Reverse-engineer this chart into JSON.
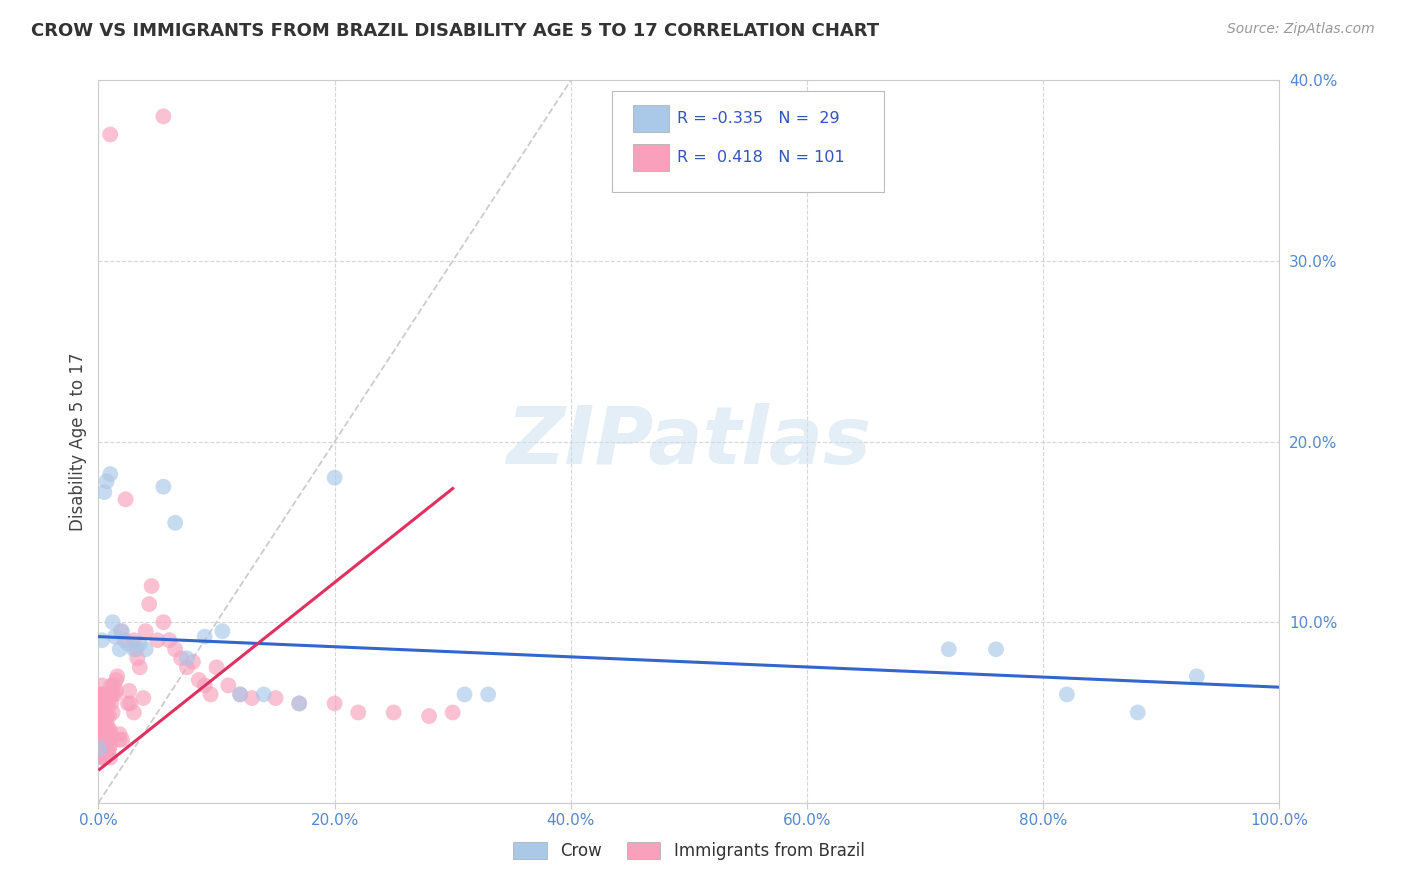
{
  "title": "CROW VS IMMIGRANTS FROM BRAZIL DISABILITY AGE 5 TO 17 CORRELATION CHART",
  "source": "Source: ZipAtlas.com",
  "ylabel": "Disability Age 5 to 17",
  "xlim": [
    0,
    1.0
  ],
  "ylim": [
    0,
    0.4
  ],
  "xtick_vals": [
    0.0,
    0.2,
    0.4,
    0.6,
    0.8,
    1.0
  ],
  "xtick_labels": [
    "0.0%",
    "20.0%",
    "40.0%",
    "60.0%",
    "80.0%",
    "100.0%"
  ],
  "ytick_vals": [
    0.0,
    0.1,
    0.2,
    0.3,
    0.4
  ],
  "ytick_labels": [
    "",
    "10.0%",
    "20.0%",
    "30.0%",
    "40.0%"
  ],
  "crow_color": "#aac8e8",
  "brazil_color": "#f8a0bc",
  "crow_line_color": "#3366cc",
  "brazil_line_color": "#e03060",
  "diagonal_color": "#cccccc",
  "R_crow": -0.335,
  "N_crow": 29,
  "R_brazil": 0.418,
  "N_brazil": 101,
  "watermark": "ZIPatlas",
  "crow_intercept": 0.092,
  "crow_slope": -0.028,
  "brazil_intercept": 0.018,
  "brazil_slope": 0.52,
  "brazil_line_xmin": 0.001,
  "brazil_line_xmax": 0.3,
  "crow_x": [
    0.001,
    0.003,
    0.005,
    0.007,
    0.01,
    0.012,
    0.014,
    0.018,
    0.02,
    0.025,
    0.03,
    0.035,
    0.04,
    0.055,
    0.065,
    0.075,
    0.09,
    0.105,
    0.12,
    0.14,
    0.17,
    0.2,
    0.31,
    0.33,
    0.72,
    0.76,
    0.82,
    0.88,
    0.93
  ],
  "crow_y": [
    0.03,
    0.09,
    0.172,
    0.178,
    0.182,
    0.1,
    0.092,
    0.085,
    0.095,
    0.088,
    0.085,
    0.088,
    0.085,
    0.175,
    0.155,
    0.08,
    0.092,
    0.095,
    0.06,
    0.06,
    0.055,
    0.18,
    0.06,
    0.06,
    0.085,
    0.085,
    0.06,
    0.05,
    0.07
  ],
  "brazil_x": [
    0.001,
    0.001,
    0.001,
    0.001,
    0.002,
    0.002,
    0.002,
    0.002,
    0.002,
    0.003,
    0.003,
    0.003,
    0.003,
    0.003,
    0.003,
    0.003,
    0.003,
    0.003,
    0.004,
    0.004,
    0.004,
    0.004,
    0.004,
    0.004,
    0.005,
    0.005,
    0.005,
    0.005,
    0.005,
    0.005,
    0.006,
    0.006,
    0.006,
    0.006,
    0.006,
    0.007,
    0.007,
    0.007,
    0.007,
    0.007,
    0.008,
    0.008,
    0.008,
    0.008,
    0.009,
    0.009,
    0.009,
    0.01,
    0.01,
    0.01,
    0.01,
    0.011,
    0.011,
    0.012,
    0.012,
    0.013,
    0.014,
    0.015,
    0.015,
    0.016,
    0.018,
    0.018,
    0.019,
    0.02,
    0.022,
    0.023,
    0.025,
    0.026,
    0.027,
    0.03,
    0.03,
    0.032,
    0.033,
    0.035,
    0.038,
    0.04,
    0.043,
    0.045,
    0.05,
    0.055,
    0.06,
    0.065,
    0.07,
    0.075,
    0.08,
    0.085,
    0.09,
    0.095,
    0.1,
    0.11,
    0.12,
    0.13,
    0.15,
    0.17,
    0.2,
    0.22,
    0.25,
    0.28,
    0.3,
    0.01,
    0.055
  ],
  "brazil_y": [
    0.03,
    0.04,
    0.05,
    0.06,
    0.03,
    0.038,
    0.042,
    0.048,
    0.058,
    0.025,
    0.028,
    0.032,
    0.036,
    0.042,
    0.048,
    0.055,
    0.06,
    0.065,
    0.025,
    0.03,
    0.035,
    0.04,
    0.045,
    0.06,
    0.025,
    0.03,
    0.038,
    0.045,
    0.052,
    0.058,
    0.028,
    0.035,
    0.042,
    0.05,
    0.06,
    0.028,
    0.033,
    0.04,
    0.048,
    0.055,
    0.028,
    0.035,
    0.042,
    0.055,
    0.03,
    0.038,
    0.048,
    0.025,
    0.032,
    0.04,
    0.06,
    0.055,
    0.065,
    0.05,
    0.06,
    0.065,
    0.06,
    0.062,
    0.068,
    0.07,
    0.035,
    0.038,
    0.095,
    0.035,
    0.09,
    0.168,
    0.055,
    0.062,
    0.055,
    0.05,
    0.09,
    0.085,
    0.08,
    0.075,
    0.058,
    0.095,
    0.11,
    0.12,
    0.09,
    0.1,
    0.09,
    0.085,
    0.08,
    0.075,
    0.078,
    0.068,
    0.065,
    0.06,
    0.075,
    0.065,
    0.06,
    0.058,
    0.058,
    0.055,
    0.055,
    0.05,
    0.05,
    0.048,
    0.05,
    0.37,
    0.38
  ]
}
